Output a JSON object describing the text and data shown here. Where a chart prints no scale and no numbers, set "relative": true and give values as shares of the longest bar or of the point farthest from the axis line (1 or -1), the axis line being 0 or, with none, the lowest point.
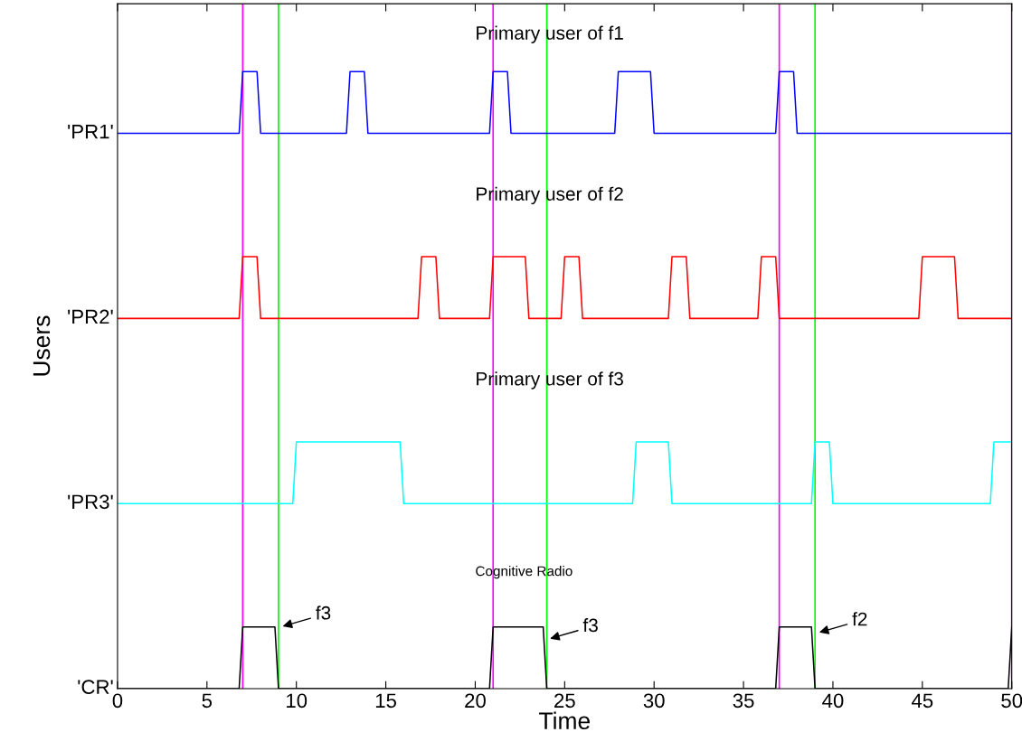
{
  "chart_data": {
    "type": "line",
    "xlabel": "Time",
    "ylabel": "Users",
    "relative": true,
    "xlim": [
      0,
      50
    ],
    "xticks": [
      0,
      5,
      10,
      15,
      20,
      25,
      30,
      35,
      40,
      45,
      50
    ],
    "grid": false,
    "legend": false,
    "series": [
      {
        "name": "'PR1'",
        "color": "#0000ff",
        "x": [
          0,
          6.8,
          7,
          7.8,
          8,
          12.8,
          13,
          13.8,
          14,
          20.8,
          21,
          21.8,
          22,
          27.8,
          28,
          29.8,
          30,
          36.8,
          37,
          37.8,
          38,
          50
        ],
        "values": [
          0.9,
          0.9,
          1,
          1,
          0.9,
          0.9,
          1,
          1,
          0.9,
          0.9,
          1,
          1,
          0.9,
          0.9,
          1,
          1,
          0.9,
          0.9,
          1,
          1,
          0.9,
          0.9
        ]
      },
      {
        "name": "'PR2'",
        "color": "#ff0000",
        "x": [
          0,
          6.8,
          7,
          7.8,
          8,
          16.8,
          17,
          17.8,
          18,
          20.8,
          21,
          22.8,
          23,
          24.8,
          25,
          25.8,
          26,
          30.8,
          31,
          31.8,
          32,
          35.8,
          36,
          36.8,
          37,
          44.8,
          45,
          46.8,
          47,
          50
        ],
        "values": [
          0.6,
          0.6,
          0.7,
          0.7,
          0.6,
          0.6,
          0.7,
          0.7,
          0.6,
          0.6,
          0.7,
          0.7,
          0.6,
          0.6,
          0.7,
          0.7,
          0.6,
          0.6,
          0.7,
          0.7,
          0.6,
          0.6,
          0.7,
          0.7,
          0.6,
          0.6,
          0.7,
          0.7,
          0.6,
          0.6
        ]
      },
      {
        "name": "'PR3'",
        "color": "#00ffff",
        "x": [
          0,
          9.8,
          10,
          15.8,
          16,
          28.8,
          29,
          30.8,
          31,
          38.8,
          39,
          39.8,
          40,
          48.8,
          49,
          50
        ],
        "values": [
          0.3,
          0.3,
          0.4,
          0.4,
          0.3,
          0.3,
          0.4,
          0.4,
          0.3,
          0.3,
          0.4,
          0.4,
          0.3,
          0.3,
          0.4,
          0.4
        ]
      },
      {
        "name": "'CR'",
        "color": "#000000",
        "x": [
          0,
          6.8,
          7,
          8.8,
          9,
          20.8,
          21,
          23.8,
          24,
          36.8,
          37,
          38.8,
          39,
          49.8,
          50
        ],
        "values": [
          0,
          0,
          0.1,
          0.1,
          0,
          0,
          0.1,
          0.1,
          0,
          0,
          0.1,
          0.1,
          0,
          0,
          0.1
        ]
      }
    ],
    "ref_lines": [
      {
        "axis": "x",
        "value": 7,
        "color": "#ff00ff"
      },
      {
        "axis": "x",
        "value": 21,
        "color": "#ff00ff"
      },
      {
        "axis": "x",
        "value": 37,
        "color": "#ff00ff"
      },
      {
        "axis": "x",
        "value": 50,
        "color": "#9b1fa0"
      },
      {
        "axis": "x",
        "value": 9,
        "color": "#00ff00"
      },
      {
        "axis": "x",
        "value": 24,
        "color": "#00ff00"
      },
      {
        "axis": "x",
        "value": 39,
        "color": "#00ff00"
      }
    ],
    "annotations": [
      "Primary user of f1",
      "Primary user of f2",
      "Primary user of f3",
      "Cognitive Radio",
      {
        "text": "f3",
        "x": 9.1,
        "y": 0.1
      },
      {
        "text": "f3",
        "x": 24.05,
        "y": 0.08
      },
      {
        "text": "f2",
        "x": 39.1,
        "y": 0.09
      }
    ]
  }
}
